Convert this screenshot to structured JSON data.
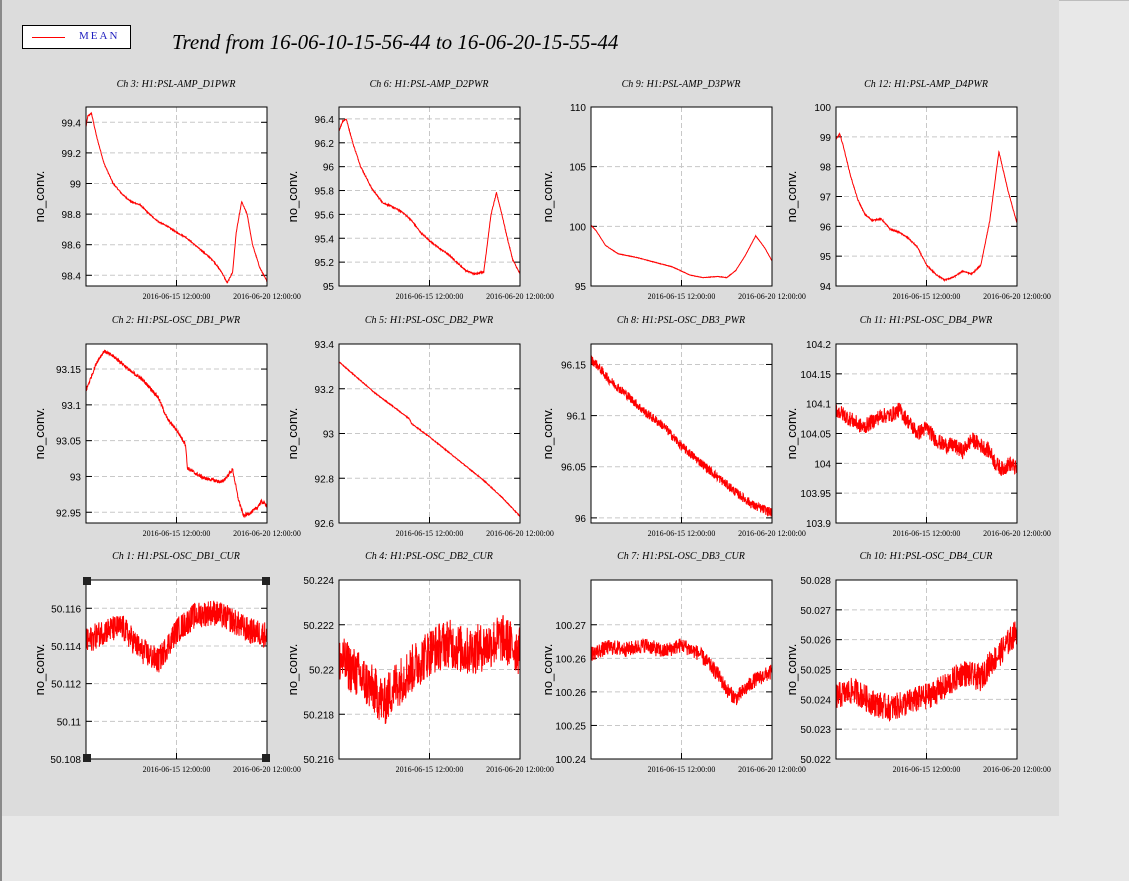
{
  "legend": {
    "label": "MEAN",
    "color": "#ff0000"
  },
  "header": {
    "title": "Trend from 16-06-10-15-56-44 to 16-06-20-15-55-44"
  },
  "x_ticks": [
    "2016-06-15 12:00:00",
    "2016-06-20 12:00:00"
  ],
  "chart_data": [
    {
      "title": "Ch 3: H1:PSL-AMP_D1PWR",
      "type": "line",
      "ylabel": "no_conv.",
      "xlim": [
        0,
        10
      ],
      "x_ticks_at": [
        5,
        10
      ],
      "ylim": [
        98.33,
        99.5
      ],
      "y_ticks": [
        "98.4",
        "98.6",
        "98.8",
        "99",
        "99.2",
        "99.4"
      ],
      "series": [
        {
          "x": [
            0,
            0.1,
            0.3,
            0.6,
            1,
            1.5,
            2,
            2.5,
            3,
            3.5,
            4,
            4.5,
            5,
            5.5,
            6,
            6.5,
            7,
            7.5,
            7.8,
            8.1,
            8.3,
            8.6,
            8.9,
            9.2,
            9.6,
            10
          ],
          "y": [
            99.37,
            99.44,
            99.46,
            99.3,
            99.13,
            99.0,
            98.93,
            98.88,
            98.86,
            98.8,
            98.75,
            98.72,
            98.68,
            98.65,
            98.6,
            98.55,
            98.5,
            98.42,
            98.35,
            98.42,
            98.68,
            98.88,
            98.8,
            98.6,
            98.45,
            98.36
          ],
          "noise": 0.004
        }
      ]
    },
    {
      "title": "Ch 6: H1:PSL-AMP_D2PWR",
      "type": "line",
      "ylabel": "no_conv.",
      "xlim": [
        0,
        10
      ],
      "x_ticks_at": [
        5,
        10
      ],
      "ylim": [
        95.0,
        96.5
      ],
      "y_ticks": [
        "95",
        "95.2",
        "95.4",
        "95.6",
        "95.8",
        "96",
        "96.2",
        "96.4"
      ],
      "series": [
        {
          "x": [
            0,
            0.2,
            0.4,
            0.8,
            1.2,
            1.8,
            2.4,
            3,
            3.5,
            4,
            4.5,
            5,
            5.5,
            6,
            6.5,
            7,
            7.5,
            8,
            8.4,
            8.7,
            9,
            9.3,
            9.6,
            10
          ],
          "y": [
            96.3,
            96.38,
            96.4,
            96.18,
            96.0,
            95.82,
            95.7,
            95.66,
            95.62,
            95.55,
            95.45,
            95.38,
            95.32,
            95.27,
            95.2,
            95.13,
            95.1,
            95.12,
            95.6,
            95.78,
            95.6,
            95.4,
            95.22,
            95.1
          ],
          "noise": 0.006
        }
      ]
    },
    {
      "title": "Ch 9: H1:PSL-AMP_D3PWR",
      "type": "line",
      "ylabel": "no_conv.",
      "xlim": [
        0,
        10
      ],
      "x_ticks_at": [
        5,
        10
      ],
      "ylim": [
        95,
        110
      ],
      "y_ticks": [
        "95",
        "100",
        "105",
        "110"
      ],
      "series": [
        {
          "x": [
            0,
            0.3,
            0.8,
            1.5,
            2.5,
            3.5,
            4.5,
            5.5,
            6.2,
            7,
            7.5,
            8,
            8.5,
            9.1,
            9.6,
            10
          ],
          "y": [
            100.1,
            99.6,
            98.4,
            97.7,
            97.4,
            97.0,
            96.6,
            95.9,
            95.7,
            95.8,
            95.7,
            96.3,
            97.5,
            99.2,
            98.2,
            97.1
          ],
          "noise": 0.02
        }
      ]
    },
    {
      "title": "Ch 12: H1:PSL-AMP_D4PWR",
      "type": "line",
      "ylabel": "no_conv.",
      "xlim": [
        0,
        10
      ],
      "x_ticks_at": [
        5,
        10
      ],
      "ylim": [
        94,
        100
      ],
      "y_ticks": [
        "94",
        "95",
        "96",
        "97",
        "98",
        "99",
        "100"
      ],
      "series": [
        {
          "x": [
            0,
            0.2,
            0.4,
            0.8,
            1.2,
            1.6,
            2,
            2.5,
            3,
            3.5,
            4,
            4.5,
            5,
            5.5,
            6,
            6.5,
            7,
            7.5,
            8,
            8.5,
            9,
            9.5,
            10
          ],
          "y": [
            98.9,
            99.1,
            98.7,
            97.7,
            96.9,
            96.4,
            96.2,
            96.25,
            95.9,
            95.8,
            95.6,
            95.3,
            94.7,
            94.4,
            94.2,
            94.3,
            94.5,
            94.4,
            94.7,
            96.2,
            98.5,
            97.2,
            96.1
          ],
          "noise": 0.02
        }
      ]
    },
    {
      "title": "Ch 2: H1:PSL-OSC_DB1_PWR",
      "type": "line",
      "ylabel": "no_conv.",
      "xlim": [
        0,
        10
      ],
      "x_ticks_at": [
        5,
        10
      ],
      "ylim": [
        92.935,
        93.185
      ],
      "y_ticks": [
        "92.95",
        "93",
        "93.05",
        "93.1",
        "93.15"
      ],
      "series": [
        {
          "x": [
            0,
            0.3,
            0.6,
            1,
            1.5,
            2,
            2.5,
            3,
            3.5,
            4,
            4.5,
            5,
            5.5,
            5.6,
            6,
            6.5,
            7,
            7.5,
            7.8,
            8.1,
            8.4,
            8.7,
            9.0,
            9.4,
            9.7,
            10
          ],
          "y": [
            93.12,
            93.14,
            93.16,
            93.175,
            93.168,
            93.158,
            93.146,
            93.138,
            93.125,
            93.11,
            93.08,
            93.065,
            93.045,
            93.012,
            93.005,
            92.998,
            92.995,
            92.992,
            93.0,
            93.01,
            92.97,
            92.945,
            92.948,
            92.955,
            92.965,
            92.96
          ],
          "noise": 0.0025
        }
      ]
    },
    {
      "title": "Ch 5: H1:PSL-OSC_DB2_PWR",
      "type": "line",
      "ylabel": "no_conv.",
      "xlim": [
        0,
        10
      ],
      "x_ticks_at": [
        5,
        10
      ],
      "ylim": [
        92.6,
        93.4
      ],
      "y_ticks": [
        "92.6",
        "92.8",
        "93",
        "93.2",
        "93.4"
      ],
      "series": [
        {
          "x": [
            0,
            1,
            2,
            3,
            3.9,
            4,
            5,
            6,
            7,
            8,
            9,
            10
          ],
          "y": [
            93.32,
            93.25,
            93.18,
            93.12,
            93.065,
            93.045,
            92.985,
            92.92,
            92.855,
            92.79,
            92.715,
            92.63
          ],
          "noise": 0.002
        }
      ]
    },
    {
      "title": "Ch 8: H1:PSL-OSC_DB3_PWR",
      "type": "line",
      "ylabel": "no_conv.",
      "xlim": [
        0,
        10
      ],
      "x_ticks_at": [
        5,
        10
      ],
      "ylim": [
        95.995,
        96.17
      ],
      "y_ticks": [
        "96",
        "96.05",
        "96.1",
        "96.15"
      ],
      "series": [
        {
          "x": [
            0,
            0.3,
            1,
            2,
            3,
            4,
            5,
            6,
            7,
            8,
            9,
            10
          ],
          "y": [
            96.155,
            96.15,
            96.135,
            96.12,
            96.103,
            96.09,
            96.07,
            96.055,
            96.04,
            96.025,
            96.012,
            96.005
          ],
          "noise": 0.0045
        }
      ]
    },
    {
      "title": "Ch 11: H1:PSL-OSC_DB4_PWR",
      "type": "line",
      "ylabel": "no_conv.",
      "xlim": [
        0,
        10
      ],
      "x_ticks_at": [
        5,
        10
      ],
      "ylim": [
        103.9,
        104.2
      ],
      "y_ticks": [
        "103.9",
        "103.95",
        "104",
        "104.05",
        "104.1",
        "104.15",
        "104.2"
      ],
      "series": [
        {
          "x": [
            0,
            0.5,
            1,
            1.5,
            2,
            2.5,
            3,
            3.5,
            4,
            4.5,
            5,
            5.5,
            6,
            6.5,
            7,
            7.5,
            8,
            8.5,
            8.8,
            9.2,
            9.6,
            10
          ],
          "y": [
            104.09,
            104.08,
            104.07,
            104.06,
            104.07,
            104.08,
            104.08,
            104.09,
            104.07,
            104.05,
            104.06,
            104.04,
            104.03,
            104.03,
            104.02,
            104.04,
            104.03,
            104.02,
            104.0,
            103.99,
            104.0,
            103.99
          ],
          "noise": 0.013
        }
      ]
    },
    {
      "title": "Ch 1: H1:PSL-OSC_DB1_CUR",
      "type": "line",
      "ylabel": "no_conv.",
      "xlim": [
        0,
        10
      ],
      "x_ticks_at": [
        5,
        10
      ],
      "ylim": [
        50.108,
        50.1175
      ],
      "y_ticks": [
        "50.108",
        "50.11",
        "50.112",
        "50.114",
        "50.116"
      ],
      "series": [
        {
          "x": [
            0,
            1,
            2,
            3,
            4,
            5,
            6,
            7,
            8,
            9,
            10
          ],
          "y": [
            50.1142,
            50.1148,
            50.115,
            50.1138,
            50.1132,
            50.1148,
            50.1156,
            50.1158,
            50.1154,
            50.1148,
            50.1146
          ],
          "noise": 0.0007
        }
      ]
    },
    {
      "title": "Ch 4: H1:PSL-OSC_DB2_CUR",
      "type": "line",
      "ylabel": "no_conv.",
      "xlim": [
        0,
        10
      ],
      "x_ticks_at": [
        5,
        10
      ],
      "ylim": [
        50.216,
        50.224
      ],
      "y_ticks": [
        "50.216",
        "50.218",
        "50.22",
        "50.222",
        "50.224"
      ],
      "series": [
        {
          "x": [
            0,
            1,
            2,
            2.5,
            3,
            4,
            5,
            6,
            7,
            8,
            9,
            10
          ],
          "y": [
            50.2205,
            50.2198,
            50.219,
            50.2185,
            50.2192,
            50.22,
            50.2208,
            50.2212,
            50.2208,
            50.221,
            50.2214,
            50.2208
          ],
          "noise": 0.0011
        }
      ]
    },
    {
      "title": "Ch 7: H1:PSL-OSC_DB3_CUR",
      "type": "line",
      "ylabel": "no_conv.",
      "xlim": [
        0,
        10
      ],
      "x_ticks_at": [
        5,
        10
      ],
      "ylim": [
        100.24,
        100.28
      ],
      "y_ticks": [
        "100.24",
        "100.25",
        "100.26",
        "100.26",
        "100.27"
      ],
      "series": [
        {
          "x": [
            0,
            1,
            2,
            3,
            4,
            5,
            6,
            7,
            7.5,
            8,
            8.5,
            9,
            10
          ],
          "y": [
            100.2635,
            100.265,
            100.2645,
            100.2655,
            100.264,
            100.2655,
            100.2635,
            100.259,
            100.2555,
            100.2535,
            100.2555,
            100.2575,
            100.2595
          ],
          "noise": 0.0017
        }
      ]
    },
    {
      "title": "Ch 10: H1:PSL-OSC_DB4_CUR",
      "type": "line",
      "ylabel": "no_conv.",
      "xlim": [
        0,
        10
      ],
      "x_ticks_at": [
        5,
        10
      ],
      "ylim": [
        50.022,
        50.028
      ],
      "y_ticks": [
        "50.022",
        "50.023",
        "50.024",
        "50.025",
        "50.026",
        "50.027",
        "50.028"
      ],
      "series": [
        {
          "x": [
            0,
            1,
            2,
            3,
            4,
            5,
            6,
            7,
            8,
            8.5,
            9,
            9.5,
            10
          ],
          "y": [
            50.0241,
            50.0243,
            50.0239,
            50.0237,
            50.0239,
            50.0241,
            50.0244,
            50.0249,
            50.0247,
            50.0252,
            50.0255,
            50.0259,
            50.0263
          ],
          "noise": 0.00045
        }
      ]
    }
  ]
}
